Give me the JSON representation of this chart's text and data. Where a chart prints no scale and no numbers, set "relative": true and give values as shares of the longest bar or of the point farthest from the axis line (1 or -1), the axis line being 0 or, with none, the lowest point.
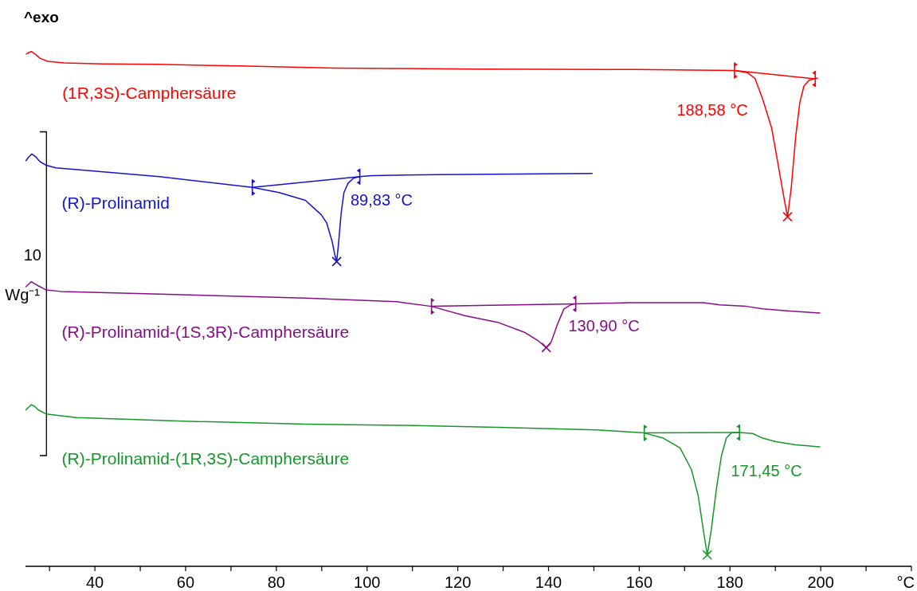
{
  "chart_data": {
    "type": "line",
    "relative": true,
    "xlabel": "°C",
    "ylabel": "Wg⁻¹",
    "xlim": [
      24.7,
      220
    ],
    "xticks": [
      {
        "value": 30,
        "label": null
      },
      40,
      {
        "value": 50,
        "label": null
      },
      60,
      {
        "value": 70,
        "label": null
      },
      80,
      {
        "value": 90,
        "label": null
      },
      100,
      {
        "value": 110,
        "label": null
      },
      120,
      {
        "value": 130,
        "label": null
      },
      140,
      {
        "value": 150,
        "label": null
      },
      160,
      {
        "value": 170,
        "label": null
      },
      180,
      {
        "value": 190,
        "label": null
      },
      200,
      {
        "value": 210,
        "label": null
      },
      {
        "value": 220,
        "label": null
      }
    ],
    "annotations": [
      "^exo",
      "10",
      "188,58 °C",
      "89,83 °C",
      "130,90 °C",
      "171,45 °C"
    ],
    "series": [
      {
        "name": "(1R,3S)-Camphersäure",
        "color": "#ff0000",
        "x": [
          24.9,
          25.4,
          26.0,
          26.7,
          27.9,
          29.6,
          33.2,
          41.9,
          54.2,
          71.8,
          92.9,
          124.5,
          159.6,
          181.0,
          183.8,
          185.5,
          187.2,
          189.2,
          190.8,
          192.1,
          192.7,
          193.5,
          194.5,
          195.4,
          196.3,
          197.4,
          198.8,
          199.3
        ],
        "values": [
          0.995,
          0.998,
          1.0,
          0.996,
          0.987,
          0.981,
          0.978,
          0.976,
          0.975,
          0.972,
          0.968,
          0.966,
          0.965,
          0.963,
          0.959,
          0.948,
          0.908,
          0.851,
          0.771,
          0.706,
          0.679,
          0.735,
          0.836,
          0.901,
          0.933,
          0.944,
          0.948,
          0.948
        ]
      },
      {
        "name": "(R)-Prolinamid",
        "color": "#1414c8",
        "x": [
          24.8,
          25.4,
          26.1,
          27.0,
          27.9,
          29.3,
          31.4,
          36.7,
          54.2,
          74.7,
          80.6,
          86.4,
          89.9,
          91.1,
          92.3,
          92.9,
          93.3,
          93.7,
          94.3,
          94.9,
          95.8,
          97.0,
          98.4,
          101.1,
          115.7,
          133.3,
          149.6
        ],
        "values": [
          0.788,
          0.795,
          0.801,
          0.795,
          0.786,
          0.779,
          0.774,
          0.77,
          0.757,
          0.736,
          0.726,
          0.711,
          0.683,
          0.667,
          0.631,
          0.605,
          0.592,
          0.626,
          0.687,
          0.726,
          0.744,
          0.754,
          0.757,
          0.759,
          0.761,
          0.762,
          0.763
        ]
      },
      {
        "name": "(R)-Prolinamid-(1S,3R)-Camphersäure",
        "color": "#860e86",
        "x": [
          24.8,
          25.4,
          26.0,
          26.7,
          27.5,
          29.2,
          32.5,
          52.7,
          86.3,
          106.5,
          114.2,
          121.5,
          128.8,
          134.6,
          137.6,
          139.5,
          140.6,
          142.0,
          143.4,
          144.9,
          146.0,
          158.0,
          174.1,
          177.7,
          183.6,
          187.2,
          193.1,
          199.8
        ],
        "values": [
          0.543,
          0.548,
          0.553,
          0.549,
          0.545,
          0.537,
          0.534,
          0.529,
          0.521,
          0.514,
          0.505,
          0.487,
          0.474,
          0.455,
          0.439,
          0.425,
          0.436,
          0.471,
          0.5,
          0.508,
          0.51,
          0.512,
          0.512,
          0.508,
          0.505,
          0.5,
          0.496,
          0.492
        ]
      },
      {
        "name": "(R)-Prolinamid-(1R,3S)-Camphersäure",
        "color": "#17962a",
        "x": [
          24.8,
          25.4,
          26.0,
          26.7,
          27.5,
          29.2,
          35.9,
          59.4,
          86.3,
          106.9,
          128.8,
          150.7,
          161.1,
          165.3,
          169.0,
          171.5,
          173.0,
          174.1,
          175.0,
          175.9,
          177.0,
          178.1,
          179.2,
          180.3,
          182.1,
          185.0,
          187.2,
          190.1,
          194.5,
          199.8
        ],
        "values": [
          0.304,
          0.309,
          0.314,
          0.311,
          0.304,
          0.296,
          0.289,
          0.282,
          0.276,
          0.274,
          0.27,
          0.265,
          0.259,
          0.249,
          0.23,
          0.188,
          0.137,
          0.072,
          0.022,
          0.072,
          0.15,
          0.214,
          0.249,
          0.259,
          0.26,
          0.258,
          0.249,
          0.242,
          0.236,
          0.232
        ]
      },
      {
        "type": "line",
        "color": "#ff0000",
        "x": [
          181.0,
          198.8
        ],
        "values": [
          0.963,
          0.947
        ]
      },
      {
        "type": "line",
        "color": "#1414c8",
        "x": [
          74.7,
          98.4
        ],
        "values": [
          0.736,
          0.757
        ]
      },
      {
        "type": "line",
        "color": "#860e86",
        "x": [
          114.2,
          146.0
        ],
        "values": [
          0.505,
          0.51
        ]
      },
      {
        "type": "line",
        "color": "#17962a",
        "x": [
          161.1,
          182.1
        ],
        "values": [
          0.259,
          0.26
        ]
      },
      {
        "type": "scatter",
        "marker": "cross",
        "color": "#ff0000",
        "x": [
          192.7
        ],
        "values": [
          0.679
        ]
      },
      {
        "type": "scatter",
        "marker": "cross",
        "color": "#1414c8",
        "x": [
          93.3
        ],
        "values": [
          0.592
        ]
      },
      {
        "type": "scatter",
        "marker": "cross",
        "color": "#860e86",
        "x": [
          139.5
        ],
        "values": [
          0.425
        ]
      },
      {
        "type": "scatter",
        "marker": "cross",
        "color": "#17962a",
        "x": [
          175.0
        ],
        "values": [
          0.022
        ]
      }
    ]
  }
}
